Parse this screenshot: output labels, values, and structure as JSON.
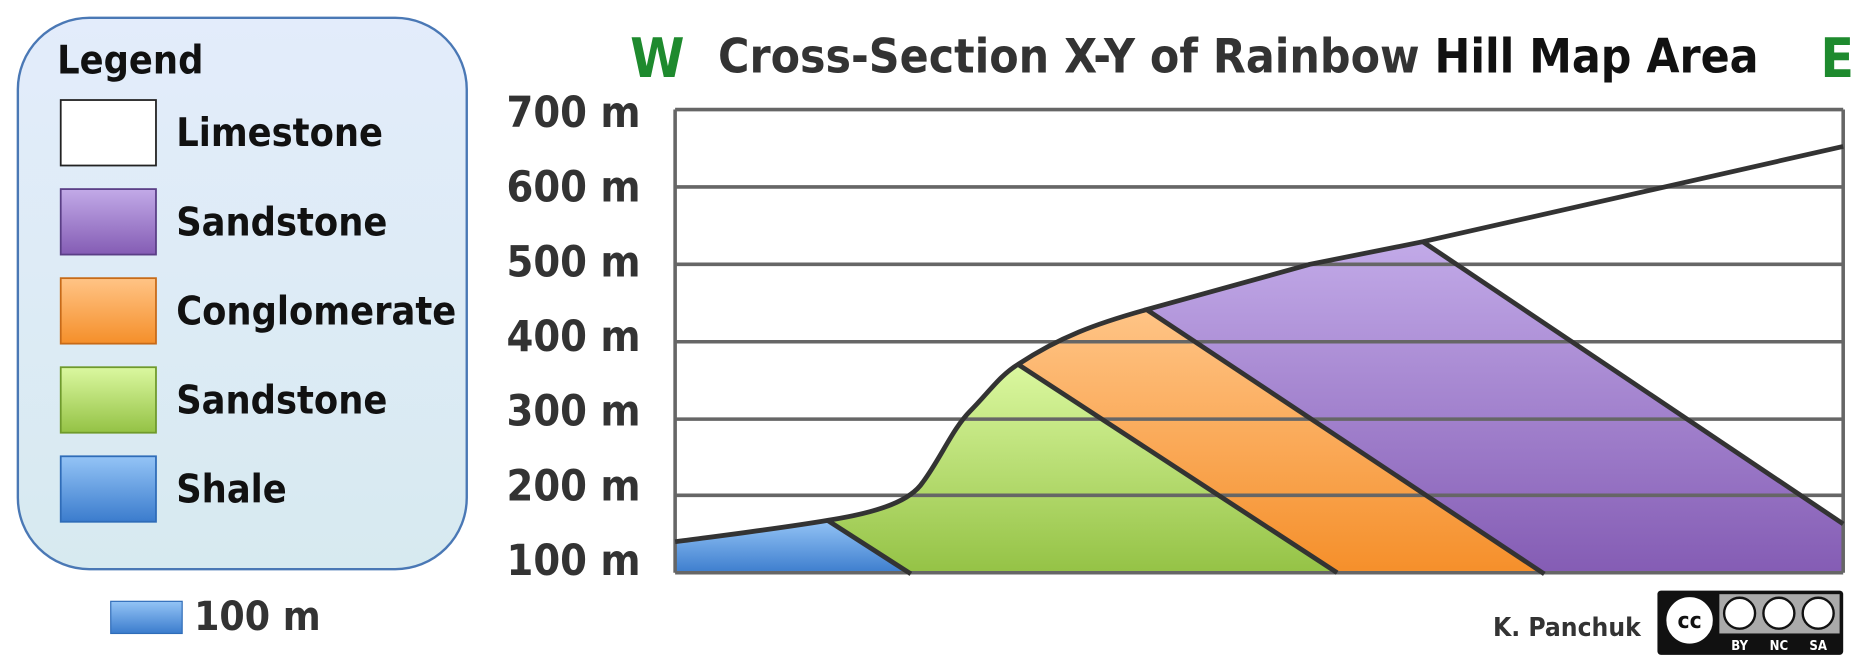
{
  "title_parts": [
    "Cross-Section X-Y of Rainbow",
    "Hill Map Area"
  ],
  "west": "W",
  "east": "E",
  "y_labels": [
    "700 m",
    "600 m",
    "500 m",
    "400 m",
    "300 m",
    "200 m",
    "100 m"
  ],
  "legend": {
    "title": "Legend",
    "items": [
      "Limestone",
      "Sandstone",
      "Conglomerate",
      "Sandstone",
      "Shale"
    ]
  },
  "scale_label": "100 m",
  "author": "K. Panchuk",
  "license": {
    "icon": "cc",
    "terms": [
      "BY",
      "NC",
      "SA"
    ]
  }
}
